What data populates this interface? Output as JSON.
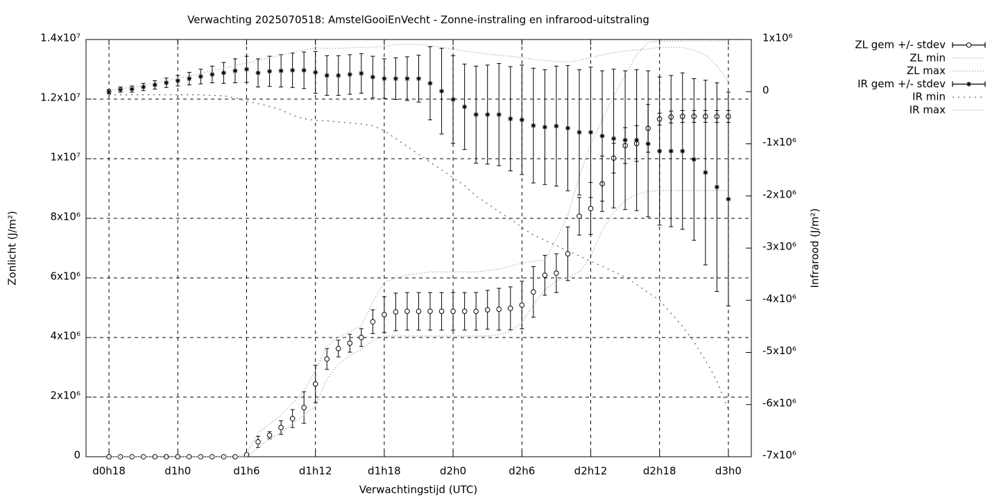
{
  "chart_data": {
    "type": "errorbar-line",
    "title": "Verwachting 2025070518: AmstelGooiEnVecht - Zonne-instraling en infrarood-uitstraling",
    "x_label": "Verwachtingstijd (UTC)",
    "y_label": "Zonlicht (J/m²)",
    "y2_label": "Infrarood (J/m²)",
    "grid": true,
    "legend": "outside-top-right",
    "x": [
      18,
      19,
      20,
      21,
      22,
      23,
      24,
      25,
      26,
      27,
      28,
      29,
      30,
      31,
      32,
      33,
      34,
      35,
      36,
      37,
      38,
      39,
      40,
      41,
      42,
      43,
      44,
      45,
      46,
      47,
      48,
      49,
      50,
      51,
      52,
      53,
      54,
      55,
      56,
      57,
      58,
      59,
      60,
      61,
      62,
      63,
      64,
      65,
      66,
      67,
      68,
      69,
      70,
      71,
      72
    ],
    "xlim": [
      16,
      74
    ],
    "xticks": [
      {
        "value": 18,
        "label": "d0h18"
      },
      {
        "value": 24,
        "label": "d1h0"
      },
      {
        "value": 30,
        "label": "d1h6"
      },
      {
        "value": 36,
        "label": "d1h12"
      },
      {
        "value": 42,
        "label": "d1h18"
      },
      {
        "value": 48,
        "label": "d2h0"
      },
      {
        "value": 54,
        "label": "d2h6"
      },
      {
        "value": 60,
        "label": "d2h12"
      },
      {
        "value": 66,
        "label": "d2h18"
      },
      {
        "value": 72,
        "label": "d3h0"
      }
    ],
    "ylim": [
      0,
      14000000
    ],
    "yticks": [
      0,
      {
        "value": 2000000,
        "label": "2x10⁶"
      },
      {
        "value": 4000000,
        "label": "4x10⁶"
      },
      {
        "value": 6000000,
        "label": "6x10⁶"
      },
      {
        "value": 8000000,
        "label": "8x10⁶"
      },
      {
        "value": 10000000,
        "label": "1x10⁷"
      },
      {
        "value": 12000000,
        "label": "1.2x10⁷"
      },
      {
        "value": 14000000,
        "label": "1.4x10⁷"
      }
    ],
    "y2lim": [
      -7000000,
      1000000
    ],
    "y2ticks": [
      {
        "value": 1000000,
        "label": "1x10⁶"
      },
      0,
      {
        "value": -1000000,
        "label": "-1x10⁶"
      },
      {
        "value": -2000000,
        "label": "-2x10⁶"
      },
      {
        "value": -3000000,
        "label": "-3x10⁶"
      },
      {
        "value": -4000000,
        "label": "-4x10⁶"
      },
      {
        "value": -5000000,
        "label": "-5x10⁶"
      },
      {
        "value": -6000000,
        "label": "-6x10⁶"
      },
      {
        "value": -7000000,
        "label": "-7x10⁶"
      }
    ],
    "series": [
      {
        "name": "ZL gem +/- stdev",
        "style": "errorbars",
        "marker": "circle",
        "color": "#000000",
        "axis": "y",
        "values": [
          0,
          0,
          0,
          0,
          0,
          0,
          0,
          0,
          0,
          0,
          0,
          0,
          70000,
          500000,
          720000,
          980000,
          1280000,
          1650000,
          2440000,
          3280000,
          3630000,
          3810000,
          4000000,
          4530000,
          4770000,
          4860000,
          4880000,
          4880000,
          4880000,
          4880000,
          4880000,
          4880000,
          4880000,
          4930000,
          4950000,
          4980000,
          5090000,
          5530000,
          6090000,
          6160000,
          6810000,
          8070000,
          8330000,
          9160000,
          10020000,
          10440000,
          10510000,
          11020000,
          11330000,
          11400000,
          11420000,
          11420000,
          11420000,
          11420000,
          11420000
        ],
        "errors": [
          0,
          0,
          0,
          0,
          0,
          0,
          0,
          0,
          0,
          0,
          0,
          0,
          40000,
          190000,
          120000,
          230000,
          300000,
          530000,
          630000,
          350000,
          280000,
          300000,
          300000,
          400000,
          600000,
          630000,
          630000,
          630000,
          630000,
          630000,
          630000,
          630000,
          630000,
          650000,
          700000,
          720000,
          800000,
          850000,
          670000,
          650000,
          900000,
          630000,
          870000,
          930000,
          500000,
          600000,
          600000,
          800000,
          200000,
          200000,
          200000,
          200000,
          200000,
          200000,
          200000
        ]
      },
      {
        "name": "ZL min",
        "style": "dotted",
        "color": "#aaaaaa",
        "axis": "y",
        "values": [
          0,
          0,
          0,
          0,
          0,
          0,
          0,
          0,
          0,
          0,
          0,
          0,
          0,
          300000,
          600000,
          800000,
          1100000,
          1400000,
          1700000,
          2600000,
          3100000,
          3400000,
          3600000,
          3900000,
          4050000,
          4050000,
          4050000,
          4050000,
          4050000,
          4050000,
          4050000,
          4050000,
          4050000,
          4050000,
          4100000,
          4200000,
          4500000,
          5100000,
          5600000,
          5900000,
          6000000,
          6200000,
          6700000,
          7600000,
          8200000,
          8600000,
          8800000,
          8900000,
          8930000,
          8930000,
          8930000,
          8930000,
          8930000,
          8930000,
          8930000
        ]
      },
      {
        "name": "ZL max",
        "style": "dotted",
        "color": "#aaaaaa",
        "axis": "y",
        "values": [
          0,
          0,
          0,
          0,
          0,
          0,
          0,
          0,
          0,
          0,
          0,
          0,
          100000,
          800000,
          1100000,
          1400000,
          1800000,
          2200000,
          2900000,
          3700000,
          4000000,
          4200000,
          4400000,
          5200000,
          5850000,
          6000000,
          6100000,
          6150000,
          6200000,
          6200000,
          6200000,
          6200000,
          6200000,
          6250000,
          6300000,
          6400000,
          6500000,
          6550000,
          6600000,
          7300000,
          8100000,
          9400000,
          10500000,
          11300000,
          12100000,
          12800000,
          13500000,
          13900000,
          13950000,
          13950000,
          13950000,
          13950000,
          13950000,
          13950000,
          13950000
        ]
      },
      {
        "name": "IR gem +/- stdev",
        "style": "errorbars",
        "marker": "star",
        "color": "#000000",
        "axis": "y2",
        "values": [
          0,
          40000,
          50000,
          90000,
          130000,
          170000,
          210000,
          250000,
          290000,
          330000,
          360000,
          400000,
          430000,
          360000,
          390000,
          400000,
          410000,
          410000,
          370000,
          310000,
          310000,
          330000,
          350000,
          280000,
          250000,
          250000,
          250000,
          250000,
          160000,
          10000,
          -150000,
          -290000,
          -440000,
          -440000,
          -440000,
          -520000,
          -540000,
          -650000,
          -680000,
          -660000,
          -700000,
          -780000,
          -780000,
          -850000,
          -900000,
          -930000,
          -930000,
          -1000000,
          -1140000,
          -1140000,
          -1140000,
          -1300000,
          -1550000,
          -1830000,
          -2060000
        ],
        "errors": [
          40000,
          50000,
          60000,
          70000,
          80000,
          90000,
          100000,
          120000,
          140000,
          160000,
          200000,
          230000,
          250000,
          270000,
          290000,
          310000,
          330000,
          350000,
          400000,
          380000,
          380000,
          380000,
          380000,
          400000,
          380000,
          400000,
          420000,
          450000,
          700000,
          820000,
          840000,
          820000,
          930000,
          950000,
          980000,
          1000000,
          1050000,
          1100000,
          1100000,
          1150000,
          1200000,
          1200000,
          1250000,
          1250000,
          1330000,
          1330000,
          1350000,
          1400000,
          1420000,
          1450000,
          1500000,
          1550000,
          1770000,
          2000000,
          2050000
        ]
      },
      {
        "name": "IR min",
        "style": "dotted-wide",
        "color": "#555555",
        "axis": "y2",
        "values": [
          -60000,
          -60000,
          -60000,
          -60000,
          -60000,
          -60000,
          -60000,
          -60000,
          -60000,
          -70000,
          -80000,
          -120000,
          -180000,
          -230000,
          -280000,
          -350000,
          -450000,
          -520000,
          -550000,
          -560000,
          -580000,
          -600000,
          -620000,
          -650000,
          -750000,
          -900000,
          -1050000,
          -1200000,
          -1350000,
          -1500000,
          -1650000,
          -1800000,
          -2000000,
          -2150000,
          -2300000,
          -2450000,
          -2600000,
          -2750000,
          -2850000,
          -2950000,
          -3050000,
          -3150000,
          -3250000,
          -3350000,
          -3450000,
          -3550000,
          -3700000,
          -3850000,
          -4000000,
          -4250000,
          -4500000,
          -4800000,
          -5150000,
          -5550000,
          -6100000
        ]
      },
      {
        "name": "IR max",
        "style": "dotted",
        "color": "#aaaaaa",
        "axis": "y2",
        "values": [
          20000,
          60000,
          80000,
          120000,
          170000,
          210000,
          260000,
          300000,
          350000,
          400000,
          450000,
          500000,
          550000,
          600000,
          650000,
          700000,
          750000,
          800000,
          840000,
          830000,
          830000,
          840000,
          850000,
          850000,
          870000,
          900000,
          910000,
          900000,
          880000,
          850000,
          820000,
          780000,
          750000,
          720000,
          700000,
          680000,
          650000,
          620000,
          600000,
          580000,
          570000,
          600000,
          650000,
          700000,
          750000,
          780000,
          800000,
          820000,
          850000,
          850000,
          850000,
          800000,
          700000,
          500000,
          200000
        ]
      }
    ]
  }
}
